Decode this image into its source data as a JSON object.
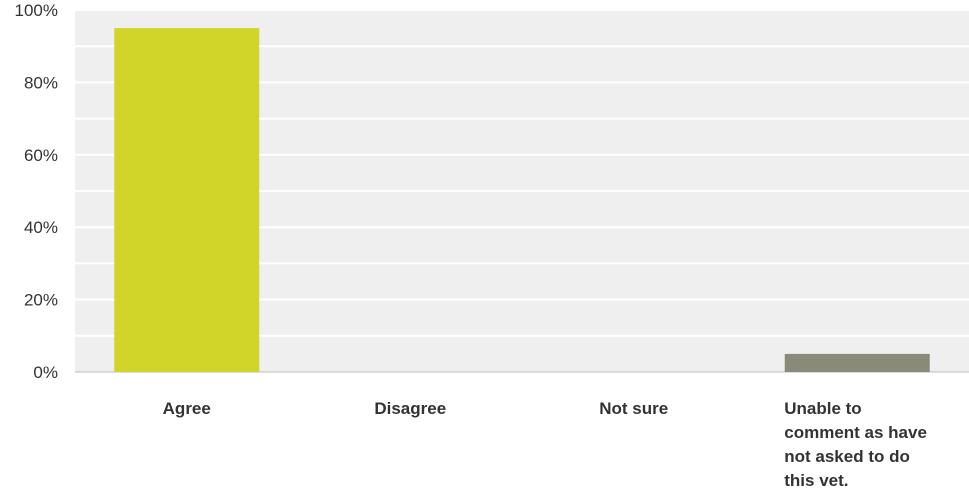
{
  "chart_data": {
    "type": "bar",
    "categories": [
      "Agree",
      "Disagree",
      "Not sure",
      "Unable to comment as have not asked to do this vet."
    ],
    "values": [
      95,
      0,
      0,
      5
    ],
    "ylim": [
      0,
      100
    ],
    "yticks": [
      "0%",
      "20%",
      "40%",
      "60%",
      "80%",
      "100%"
    ],
    "bar_colors": [
      "#d1d52a",
      "#d1d52a",
      "#d1d52a",
      "#8a8a78"
    ],
    "plot_background": "#efefef",
    "gridline_color": "#ffffff",
    "grid": true
  }
}
